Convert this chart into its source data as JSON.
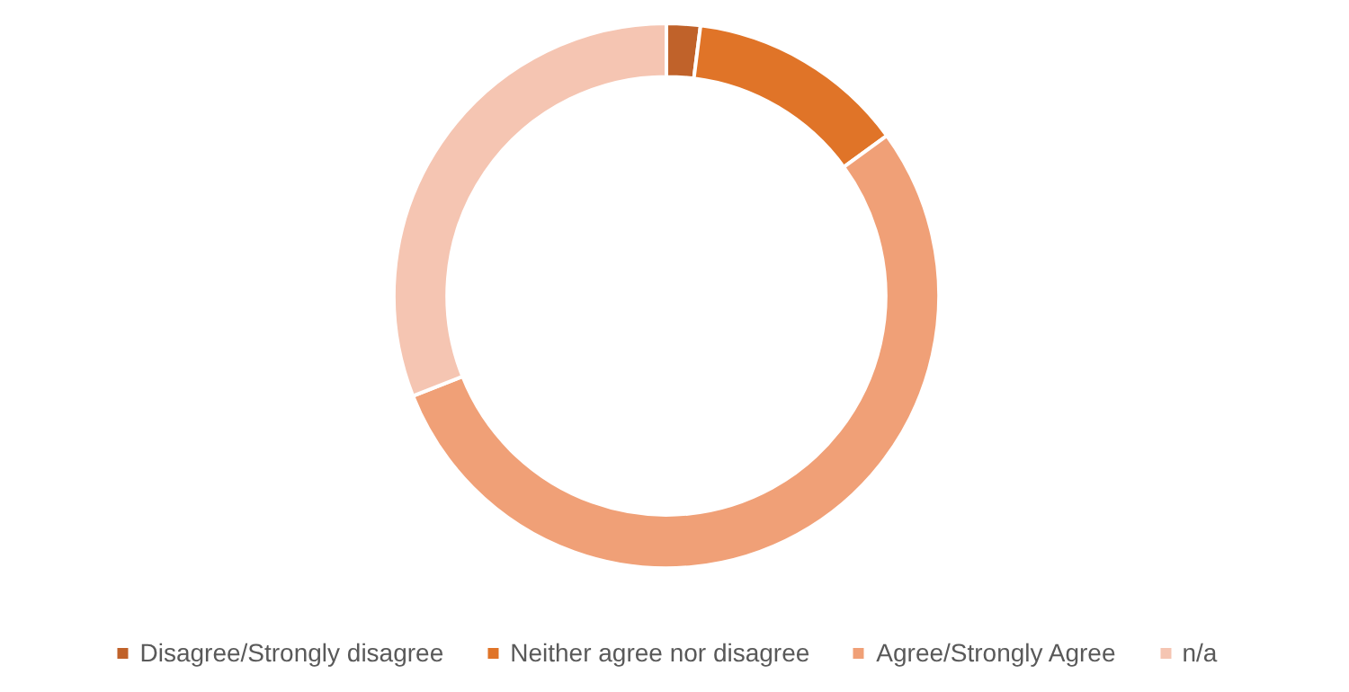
{
  "chart_data": {
    "type": "donut",
    "categories": [
      "Disagree/Strongly disagree",
      "Neither agree nor disagree",
      "Agree/Strongly Agree",
      "n/a"
    ],
    "values": [
      2,
      13,
      54,
      31
    ],
    "colors": [
      "#c0622a",
      "#e07428",
      "#f0a077",
      "#f5c5b2"
    ],
    "legend": "bottom"
  }
}
